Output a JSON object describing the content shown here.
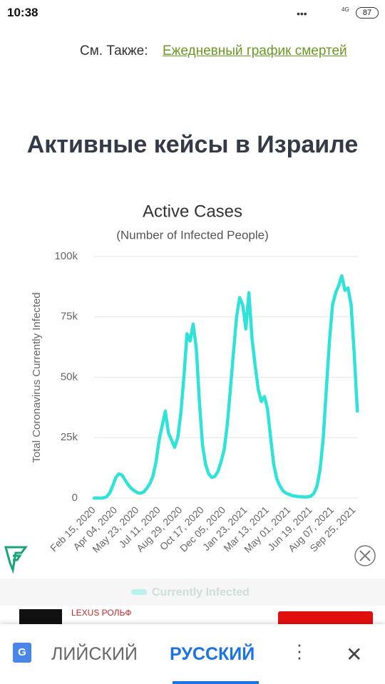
{
  "status_bar": {
    "time": "10:38",
    "network": "4G",
    "battery": "87"
  },
  "see_also": {
    "label": "См. Также:",
    "link": "Ежедневный график смертей"
  },
  "heading": "Активные кейсы в Израиле",
  "chart_data": {
    "type": "line",
    "title": "Active Cases",
    "subtitle": "(Number of Infected People)",
    "y_label": "Total Coronavirus Currently Infected",
    "categories": [
      "Feb 15, 2020",
      null,
      null,
      null,
      null,
      null,
      null,
      "Apr 04, 2020",
      null,
      null,
      null,
      null,
      null,
      null,
      "May 23, 2020",
      null,
      null,
      null,
      null,
      null,
      null,
      "Jul 11, 2020",
      null,
      null,
      null,
      null,
      null,
      null,
      "Aug 29, 2020",
      null,
      null,
      null,
      null,
      null,
      null,
      "Oct 17, 2020",
      null,
      null,
      null,
      null,
      null,
      null,
      "Dec 05, 2020",
      null,
      null,
      null,
      null,
      null,
      null,
      "Jan 23, 2021",
      null,
      null,
      null,
      null,
      null,
      null,
      "Mar 13, 2021",
      null,
      null,
      null,
      null,
      null,
      null,
      "May 01, 2021",
      null,
      null,
      null,
      null,
      null,
      null,
      "Jun 19, 2021",
      null,
      null,
      null,
      null,
      null,
      null,
      "Aug 07, 2021",
      null,
      null,
      null,
      null,
      null,
      null,
      "Sep 25, 2021",
      null
    ],
    "series": [
      {
        "name": "Currently Infected",
        "color": "#2fe3d8",
        "values": [
          0,
          0,
          0,
          100,
          500,
          2000,
          5000,
          8500,
          10000,
          9500,
          7500,
          5500,
          4000,
          3000,
          2200,
          2000,
          2500,
          4000,
          6000,
          9000,
          15000,
          24000,
          30000,
          36000,
          27000,
          24000,
          21000,
          25000,
          35000,
          50000,
          68000,
          65000,
          72000,
          62000,
          40000,
          22000,
          14000,
          10000,
          8500,
          9000,
          11000,
          15000,
          20000,
          30000,
          45000,
          60000,
          75000,
          83000,
          80000,
          70000,
          85000,
          66000,
          55000,
          45000,
          40000,
          42000,
          37000,
          25000,
          14000,
          8000,
          5000,
          3000,
          2000,
          1500,
          1000,
          800,
          600,
          500,
          400,
          500,
          800,
          2000,
          5000,
          12000,
          25000,
          45000,
          65000,
          80000,
          85000,
          88000,
          92000,
          86000,
          87000,
          80000,
          60000,
          36000
        ]
      }
    ],
    "ylim": [
      0,
      100000
    ],
    "yticks": [
      0,
      {
        "value": 25000,
        "label": "25k"
      },
      {
        "value": 50000,
        "label": "50k"
      },
      {
        "value": 75000,
        "label": "75k"
      },
      {
        "value": 100000,
        "label": "100k"
      }
    ],
    "grid": true
  },
  "ad": {
    "brand": "LEXUS РОЛЬФ"
  },
  "translate_bar": {
    "languages": [
      "ЛИЙСКИЙ",
      "РУССКИЙ"
    ]
  }
}
